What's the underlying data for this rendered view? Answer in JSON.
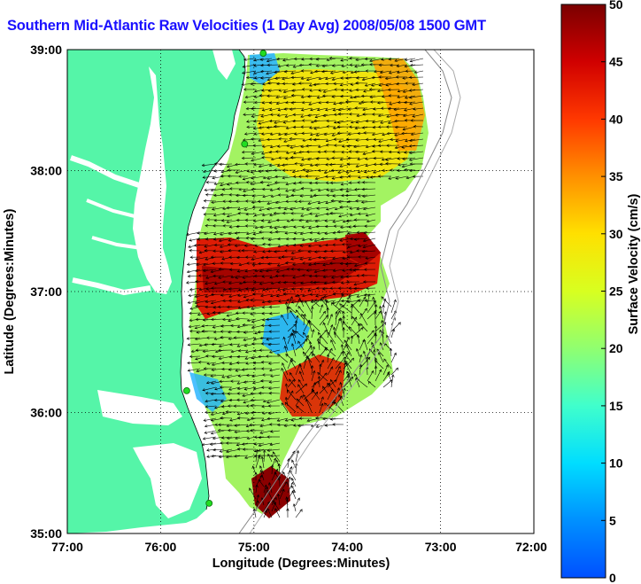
{
  "title": "Southern Mid-Atlantic Raw Velocities (1 Day Avg) 2008/05/08 1500 GMT",
  "xlabel": "Longitude (Degrees:Minutes)",
  "ylabel": "Latitude (Degrees:Minutes)",
  "x_ticks": [
    "77:00",
    "76:00",
    "75:00",
    "74:00",
    "73:00",
    "72:00"
  ],
  "y_ticks": [
    "39:00",
    "38:00",
    "37:00",
    "36:00",
    "35:00"
  ],
  "colorbar": {
    "label": "Surface Velocity (cm/s)",
    "ticks": [
      "50",
      "45",
      "40",
      "35",
      "30",
      "25",
      "20",
      "15",
      "10",
      "5",
      "0"
    ],
    "range": [
      0,
      50
    ]
  },
  "colors": {
    "land": "#55f5a8",
    "water": "#ffffff",
    "title": "#1a10ff",
    "grid": "#000000",
    "stations": "#22dd22"
  },
  "chart_data": {
    "type": "heatmap",
    "title": "Southern Mid-Atlantic Raw Velocities (1 Day Avg) 2008/05/08 1500 GMT",
    "xlabel": "Longitude (Degrees:Minutes)",
    "ylabel": "Latitude (Degrees:Minutes)",
    "xlim": [
      -77.0,
      -72.0
    ],
    "ylim": [
      35.0,
      39.0
    ],
    "grid": true,
    "colorbar_label": "Surface Velocity (cm/s)",
    "colorbar_range": [
      0,
      50
    ],
    "stations": [
      {
        "lon": -74.9,
        "lat": 38.97
      },
      {
        "lon": -75.1,
        "lat": 38.22
      },
      {
        "lon": -75.72,
        "lat": 36.18
      },
      {
        "lon": -75.48,
        "lat": 35.25
      }
    ]
  }
}
